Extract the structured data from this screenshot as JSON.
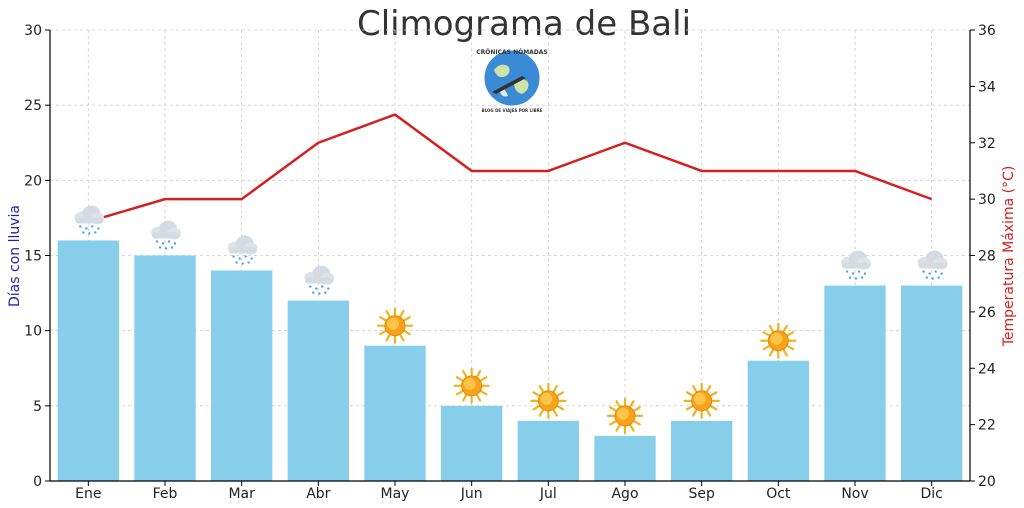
{
  "chart_data": {
    "type": "bar",
    "title": "Climograma de Bali",
    "categories": [
      "Ene",
      "Feb",
      "Mar",
      "Abr",
      "May",
      "Jun",
      "Jul",
      "Ago",
      "Sep",
      "Oct",
      "Nov",
      "Dic"
    ],
    "series": [
      {
        "name": "Días con lluvia",
        "type": "bar",
        "axis": "left",
        "color": "#87ceeb",
        "values": [
          16,
          15,
          14,
          12,
          9,
          5,
          4,
          3,
          4,
          8,
          13,
          13
        ]
      },
      {
        "name": "Temperatura Máxima (°C)",
        "type": "line",
        "axis": "right",
        "color": "#d62020",
        "values": [
          29.2,
          30,
          30,
          32,
          33,
          31,
          31,
          32,
          31,
          31,
          31,
          30
        ]
      }
    ],
    "weather_icons": [
      "rain",
      "rain",
      "rain",
      "rain",
      "sun",
      "sun",
      "sun",
      "sun",
      "sun",
      "sun",
      "rain",
      "rain"
    ],
    "ylabel_left": "Días con lluvia",
    "ylabel_right": "Temperatura Máxima (°C)",
    "ylim_left": [
      0,
      30
    ],
    "ylim_right": [
      20,
      36
    ],
    "yticks_left": [
      0,
      5,
      10,
      15,
      20,
      25,
      30
    ],
    "yticks_right": [
      20,
      22,
      24,
      26,
      28,
      30,
      32,
      34,
      36
    ],
    "grid": true
  },
  "watermark": {
    "top_text": "CRÓNICAS NÓMADAS",
    "bottom_text": "BLOG DE VIAJES POR LIBRE"
  }
}
